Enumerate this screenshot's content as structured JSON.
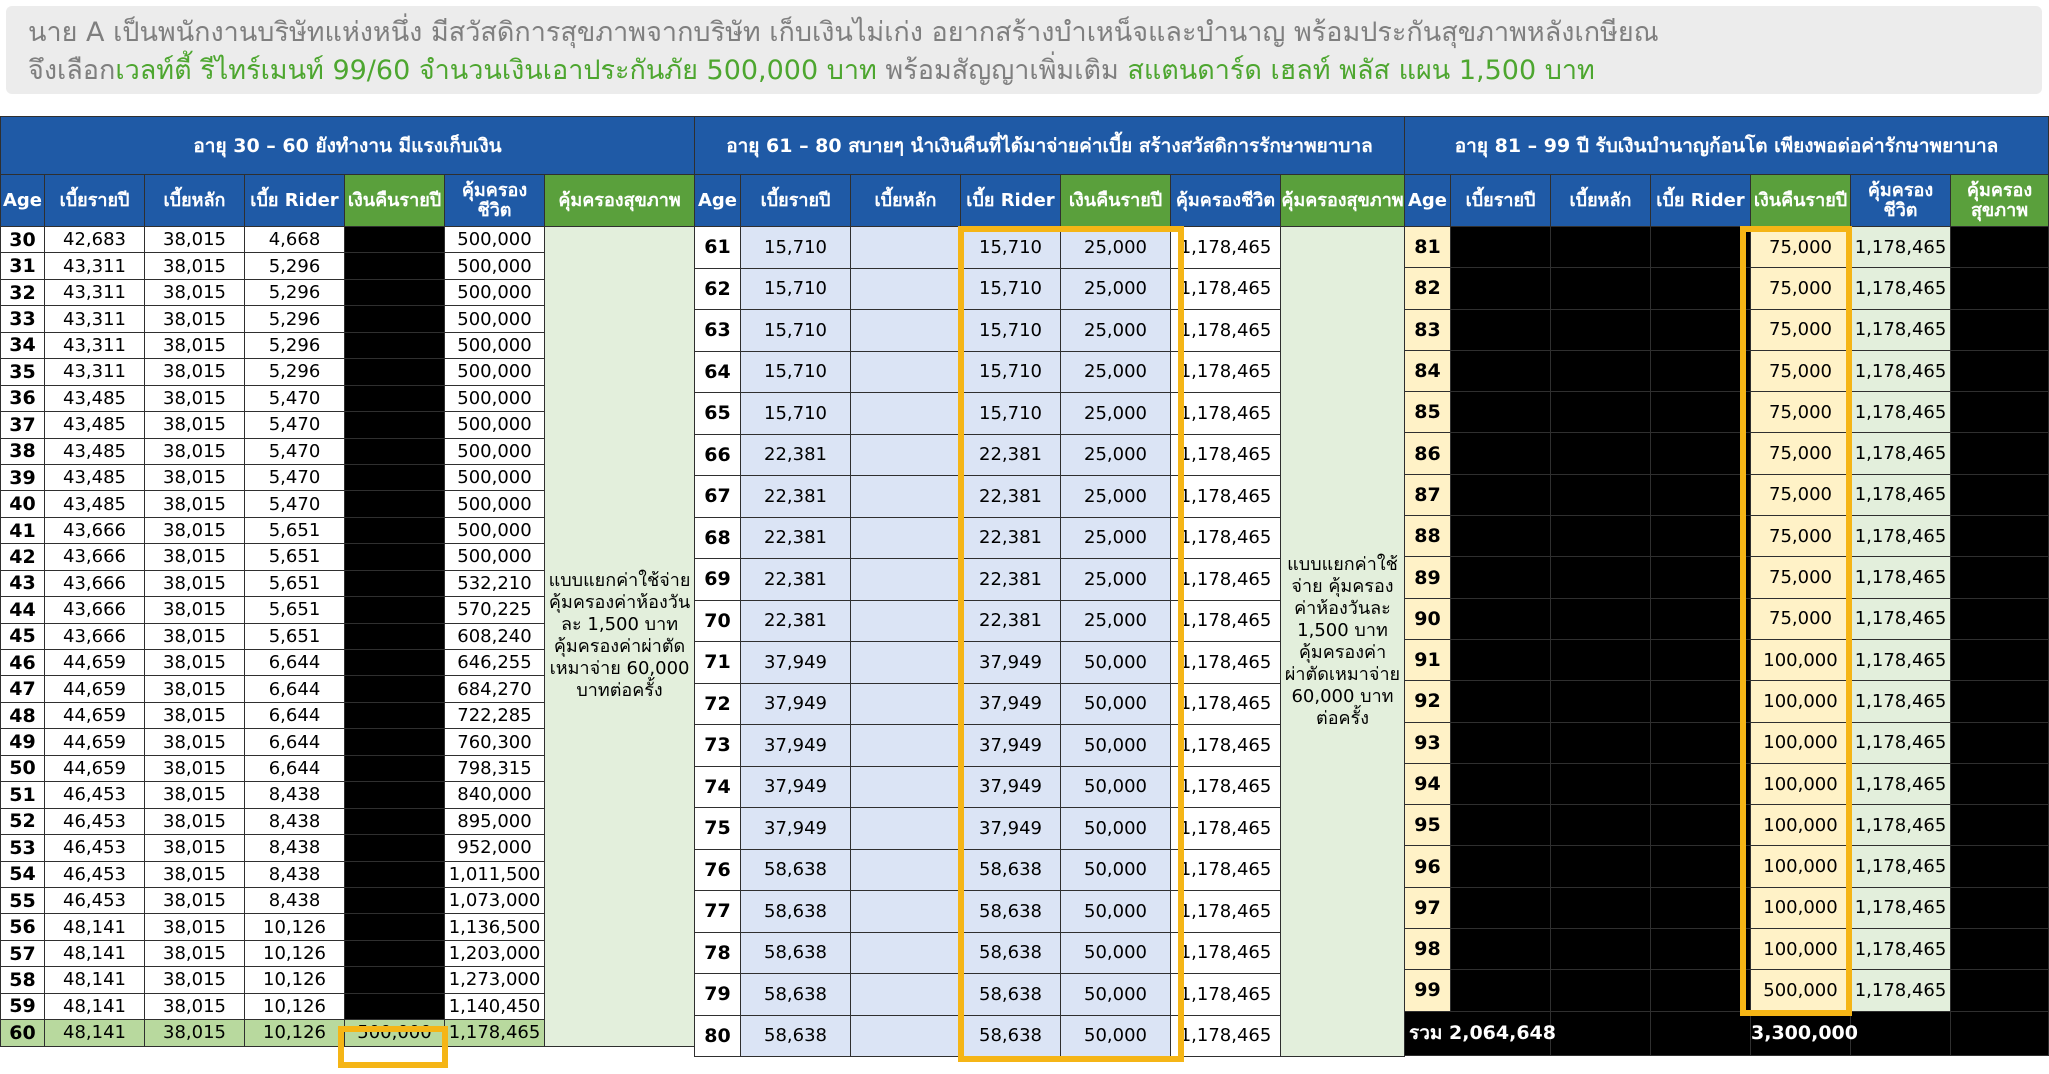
{
  "intro": {
    "line1": "นาย A เป็นพนักงานบริษัทแห่งหนึ่ง มีสวัสดิการสุขภาพจากบริษัท เก็บเงินไม่เก่ง อยากสร้างบำเหน็จและบำนาญ พร้อมประกันสุขภาพหลังเกษียณ",
    "line2_prefix": "จึงเลือก",
    "line2_plan": "เวลท์ตี้ รีไทร์เมนท์ 99/60 จำนวนเงินเอาประกันภัย 500,000 บาท",
    "line2_mid": " พร้อมสัญญาเพิ่มเติม ",
    "line2_rider": "สแตนดาร์ด เฮลท์ พลัส แผน 1,500 บาท"
  },
  "table1": {
    "title": "อายุ 30 – 60  ยังทำงาน มีแรงเก็บเงิน",
    "headers": [
      "Age",
      "เบี้ยรายปี",
      "เบี้ยหลัก",
      "เบี้ย Rider",
      "เงินคืนรายปี",
      "คุ้มครองชีวิต",
      "คุ้มครองสุขภาพ"
    ],
    "note": "แบบแยกค่าใช้จ่าย คุ้มครองค่าห้องวันละ 1,500 บาท คุ้มครองค่าผ่าตัดเหมาจ่าย 60,000 บาทต่อครั้ง",
    "rows": [
      [
        "30",
        "42,683",
        "38,015",
        "4,668",
        "",
        "500,000"
      ],
      [
        "31",
        "43,311",
        "38,015",
        "5,296",
        "",
        "500,000"
      ],
      [
        "32",
        "43,311",
        "38,015",
        "5,296",
        "",
        "500,000"
      ],
      [
        "33",
        "43,311",
        "38,015",
        "5,296",
        "",
        "500,000"
      ],
      [
        "34",
        "43,311",
        "38,015",
        "5,296",
        "",
        "500,000"
      ],
      [
        "35",
        "43,311",
        "38,015",
        "5,296",
        "",
        "500,000"
      ],
      [
        "36",
        "43,485",
        "38,015",
        "5,470",
        "",
        "500,000"
      ],
      [
        "37",
        "43,485",
        "38,015",
        "5,470",
        "",
        "500,000"
      ],
      [
        "38",
        "43,485",
        "38,015",
        "5,470",
        "",
        "500,000"
      ],
      [
        "39",
        "43,485",
        "38,015",
        "5,470",
        "",
        "500,000"
      ],
      [
        "40",
        "43,485",
        "38,015",
        "5,470",
        "",
        "500,000"
      ],
      [
        "41",
        "43,666",
        "38,015",
        "5,651",
        "",
        "500,000"
      ],
      [
        "42",
        "43,666",
        "38,015",
        "5,651",
        "",
        "500,000"
      ],
      [
        "43",
        "43,666",
        "38,015",
        "5,651",
        "",
        "532,210"
      ],
      [
        "44",
        "43,666",
        "38,015",
        "5,651",
        "",
        "570,225"
      ],
      [
        "45",
        "43,666",
        "38,015",
        "5,651",
        "",
        "608,240"
      ],
      [
        "46",
        "44,659",
        "38,015",
        "6,644",
        "",
        "646,255"
      ],
      [
        "47",
        "44,659",
        "38,015",
        "6,644",
        "",
        "684,270"
      ],
      [
        "48",
        "44,659",
        "38,015",
        "6,644",
        "",
        "722,285"
      ],
      [
        "49",
        "44,659",
        "38,015",
        "6,644",
        "",
        "760,300"
      ],
      [
        "50",
        "44,659",
        "38,015",
        "6,644",
        "",
        "798,315"
      ],
      [
        "51",
        "46,453",
        "38,015",
        "8,438",
        "",
        "840,000"
      ],
      [
        "52",
        "46,453",
        "38,015",
        "8,438",
        "",
        "895,000"
      ],
      [
        "53",
        "46,453",
        "38,015",
        "8,438",
        "",
        "952,000"
      ],
      [
        "54",
        "46,453",
        "38,015",
        "8,438",
        "",
        "1,011,500"
      ],
      [
        "55",
        "46,453",
        "38,015",
        "8,438",
        "",
        "1,073,000"
      ],
      [
        "56",
        "48,141",
        "38,015",
        "10,126",
        "",
        "1,136,500"
      ],
      [
        "57",
        "48,141",
        "38,015",
        "10,126",
        "",
        "1,203,000"
      ],
      [
        "58",
        "48,141",
        "38,015",
        "10,126",
        "",
        "1,273,000"
      ],
      [
        "59",
        "48,141",
        "38,015",
        "10,126",
        "",
        "1,140,450"
      ],
      [
        "60",
        "48,141",
        "38,015",
        "10,126",
        "500,000",
        "1,178,465"
      ]
    ]
  },
  "table2": {
    "title": "อายุ 61 – 80  สบายๆ นำเงินคืนที่ได้มาจ่ายค่าเบี้ย สร้างสวัสดิการรักษาพยาบาล",
    "headers": [
      "Age",
      "เบี้ยรายปี",
      "เบี้ยหลัก",
      "เบี้ย Rider",
      "เงินคืนรายปี",
      "คุ้มครองชีวิต",
      "คุ้มครองสุขภาพ"
    ],
    "note": "แบบแยกค่าใช้จ่าย คุ้มครองค่าห้องวันละ 1,500 บาท คุ้มครองค่าผ่าตัดเหมาจ่าย 60,000 บาทต่อครั้ง",
    "rows": [
      [
        "61",
        "15,710",
        "",
        "15,710",
        "25,000",
        "1,178,465"
      ],
      [
        "62",
        "15,710",
        "",
        "15,710",
        "25,000",
        "1,178,465"
      ],
      [
        "63",
        "15,710",
        "",
        "15,710",
        "25,000",
        "1,178,465"
      ],
      [
        "64",
        "15,710",
        "",
        "15,710",
        "25,000",
        "1,178,465"
      ],
      [
        "65",
        "15,710",
        "",
        "15,710",
        "25,000",
        "1,178,465"
      ],
      [
        "66",
        "22,381",
        "",
        "22,381",
        "25,000",
        "1,178,465"
      ],
      [
        "67",
        "22,381",
        "",
        "22,381",
        "25,000",
        "1,178,465"
      ],
      [
        "68",
        "22,381",
        "",
        "22,381",
        "25,000",
        "1,178,465"
      ],
      [
        "69",
        "22,381",
        "",
        "22,381",
        "25,000",
        "1,178,465"
      ],
      [
        "70",
        "22,381",
        "",
        "22,381",
        "25,000",
        "1,178,465"
      ],
      [
        "71",
        "37,949",
        "",
        "37,949",
        "50,000",
        "1,178,465"
      ],
      [
        "72",
        "37,949",
        "",
        "37,949",
        "50,000",
        "1,178,465"
      ],
      [
        "73",
        "37,949",
        "",
        "37,949",
        "50,000",
        "1,178,465"
      ],
      [
        "74",
        "37,949",
        "",
        "37,949",
        "50,000",
        "1,178,465"
      ],
      [
        "75",
        "37,949",
        "",
        "37,949",
        "50,000",
        "1,178,465"
      ],
      [
        "76",
        "58,638",
        "",
        "58,638",
        "50,000",
        "1,178,465"
      ],
      [
        "77",
        "58,638",
        "",
        "58,638",
        "50,000",
        "1,178,465"
      ],
      [
        "78",
        "58,638",
        "",
        "58,638",
        "50,000",
        "1,178,465"
      ],
      [
        "79",
        "58,638",
        "",
        "58,638",
        "50,000",
        "1,178,465"
      ],
      [
        "80",
        "58,638",
        "",
        "58,638",
        "50,000",
        "1,178,465"
      ]
    ]
  },
  "table3": {
    "title": "อายุ 81 – 99 ปี รับเงินบำนาญก้อนโต เพียงพอต่อค่ารักษาพยาบาล",
    "headers": [
      "Age",
      "เบี้ยรายปี",
      "เบี้ยหลัก",
      "เบี้ย Rider",
      "เงินคืนรายปี",
      "คุ้มครองชีวิต",
      "คุ้มครองสุขภาพ"
    ],
    "rows": [
      [
        "81",
        "75,000",
        "1,178,465"
      ],
      [
        "82",
        "75,000",
        "1,178,465"
      ],
      [
        "83",
        "75,000",
        "1,178,465"
      ],
      [
        "84",
        "75,000",
        "1,178,465"
      ],
      [
        "85",
        "75,000",
        "1,178,465"
      ],
      [
        "86",
        "75,000",
        "1,178,465"
      ],
      [
        "87",
        "75,000",
        "1,178,465"
      ],
      [
        "88",
        "75,000",
        "1,178,465"
      ],
      [
        "89",
        "75,000",
        "1,178,465"
      ],
      [
        "90",
        "75,000",
        "1,178,465"
      ],
      [
        "91",
        "100,000",
        "1,178,465"
      ],
      [
        "92",
        "100,000",
        "1,178,465"
      ],
      [
        "93",
        "100,000",
        "1,178,465"
      ],
      [
        "94",
        "100,000",
        "1,178,465"
      ],
      [
        "95",
        "100,000",
        "1,178,465"
      ],
      [
        "96",
        "100,000",
        "1,178,465"
      ],
      [
        "97",
        "100,000",
        "1,178,465"
      ],
      [
        "98",
        "100,000",
        "1,178,465"
      ],
      [
        "99",
        "500,000",
        "1,178,465"
      ]
    ],
    "total_label": "รวม 2,064,648",
    "total_refund": "3,300,000"
  },
  "colors": {
    "header_blue": "#1f5aa6",
    "header_green": "#5aa03c",
    "highlight": "#f5b516"
  }
}
